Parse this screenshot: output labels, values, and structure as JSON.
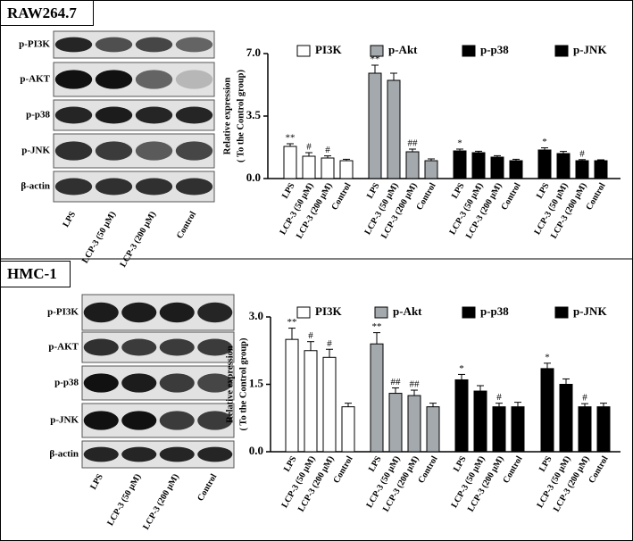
{
  "panels": [
    {
      "title": "RAW264.7",
      "blot_labels": [
        "p-PI3K",
        "p-AKT",
        "p-p38",
        "p-JNK",
        "β-actin"
      ],
      "lanes": [
        "LPS",
        "LCP-3 (50 μM)",
        "LCP-3 (200 μM)",
        "Control"
      ]
    },
    {
      "title": "HMC-1",
      "blot_labels": [
        "p-PI3K",
        "p-AKT",
        "p-p38",
        "p-JNK",
        "β-actin"
      ],
      "lanes": [
        "LPS",
        "LCP-3 (50 μM)",
        "LCP-3 (200 μM)",
        "Control"
      ]
    }
  ],
  "chart_data": [
    {
      "type": "bar",
      "ylabel": [
        "Relative expression",
        "( To the Control group)"
      ],
      "categories": [
        "LPS",
        "LCP-3 (50 μM)",
        "LCP-3 (200 μM)",
        "Control"
      ],
      "ylim": [
        0,
        7
      ],
      "yticks": [
        {
          "value": 0,
          "label": "0.0"
        },
        3.5,
        {
          "value": 7,
          "label": "7.0"
        }
      ],
      "series": [
        {
          "name": "PI3K",
          "color": "#ffffff",
          "values": [
            1.8,
            1.25,
            1.15,
            1.0
          ],
          "errors": [
            0.15,
            0.2,
            0.12,
            0.08
          ],
          "annotations": [
            "**",
            "#",
            "#",
            null
          ]
        },
        {
          "name": "p-Akt",
          "color": "#a3a9ad",
          "values": [
            5.9,
            5.5,
            1.5,
            1.0
          ],
          "errors": [
            0.45,
            0.4,
            0.15,
            0.1
          ],
          "annotations": [
            "**",
            null,
            "##",
            null
          ]
        },
        {
          "name": "p-p38",
          "color": "#000000",
          "values": [
            1.55,
            1.45,
            1.2,
            1.0
          ],
          "errors": [
            0.1,
            0.08,
            0.08,
            0.08
          ],
          "annotations": [
            "*",
            null,
            null,
            null
          ]
        },
        {
          "name": "p-JNK",
          "color": "#000000",
          "values": [
            1.6,
            1.4,
            1.0,
            1.0
          ],
          "errors": [
            0.12,
            0.12,
            0.06,
            0.05
          ],
          "annotations": [
            "*",
            null,
            "#",
            null
          ]
        }
      ]
    },
    {
      "type": "bar",
      "ylabel": [
        "Relative expression",
        "( To the Control group)"
      ],
      "categories": [
        "LPS",
        "LCP-3 (50 μM)",
        "LCP-3 (200 μM)",
        "Control"
      ],
      "ylim": [
        0,
        3
      ],
      "yticks": [
        {
          "value": 0,
          "label": "0.0"
        },
        1.5,
        {
          "value": 3,
          "label": "3.0"
        }
      ],
      "series": [
        {
          "name": "PI3K",
          "color": "#ffffff",
          "values": [
            2.5,
            2.25,
            2.1,
            1.0
          ],
          "errors": [
            0.25,
            0.2,
            0.18,
            0.08
          ],
          "annotations": [
            "**",
            "#",
            "#",
            null
          ]
        },
        {
          "name": "p-Akt",
          "color": "#a3a9ad",
          "values": [
            2.4,
            1.3,
            1.25,
            1.0
          ],
          "errors": [
            0.25,
            0.12,
            0.12,
            0.08
          ],
          "annotations": [
            "**",
            "##",
            "##",
            null
          ]
        },
        {
          "name": "p-p38",
          "color": "#000000",
          "values": [
            1.6,
            1.35,
            1.0,
            1.0
          ],
          "errors": [
            0.12,
            0.12,
            0.08,
            0.1
          ],
          "annotations": [
            "*",
            null,
            "#",
            null
          ]
        },
        {
          "name": "p-JNK",
          "color": "#000000",
          "values": [
            1.85,
            1.5,
            1.0,
            1.0
          ],
          "errors": [
            0.12,
            0.12,
            0.07,
            0.08
          ],
          "annotations": [
            "*",
            null,
            "#",
            null
          ]
        }
      ]
    }
  ]
}
